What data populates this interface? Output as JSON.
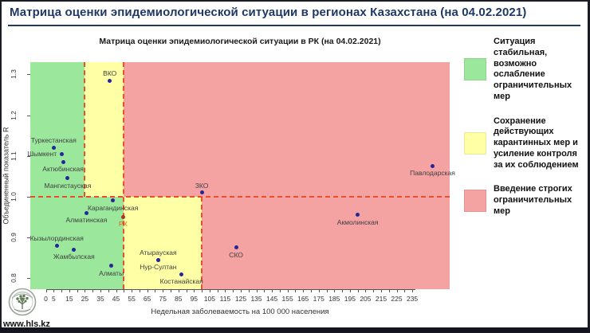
{
  "header": {
    "title": "Матрица оценки эпидемиологической ситуации в регионах Казахстана (на 04.02.2021)"
  },
  "footer": {
    "website": "www.hls.kz",
    "logo_icon": "tree-emblem-icon"
  },
  "colors": {
    "green": "#9be79b",
    "yellow": "#ffffa6",
    "red": "#f4a2a2",
    "dash": "#e8502a",
    "point": "#26269b",
    "rk_point": "#a8391e",
    "rk_label": "#e8601c",
    "title_navy": "#1f3864"
  },
  "legend": {
    "items": [
      {
        "swatch": "green",
        "text": "Ситуация стабильная, возможно ослабление ограничительных мер"
      },
      {
        "swatch": "yellow",
        "text": "Сохранение действующих карантинных мер и усиление контроля за их соблюдением"
      },
      {
        "swatch": "red",
        "text": "Введение строгих ограничительных мер"
      }
    ]
  },
  "chart_data": {
    "type": "scatter",
    "title": "Матрица оценки эпидемиологической ситуации в РК (на 04.02.2021)",
    "xlabel": "Недельная заболеваемость на 100 000 населения",
    "ylabel": "Объединенный показатель R",
    "xlim": [
      -10,
      259
    ],
    "ylim": [
      0.773,
      1.33
    ],
    "x_tick_min": 0,
    "x_tick_max": 235,
    "x_tick_step": 5,
    "x_tick_labels": [
      0,
      5,
      15,
      25,
      35,
      45,
      55,
      65,
      75,
      85,
      95,
      105,
      115,
      125,
      135,
      145,
      155,
      165,
      175,
      185,
      195,
      205,
      215,
      225,
      235
    ],
    "y_ticks": [
      0.8,
      0.9,
      1.0,
      1.1,
      1.2,
      1.3
    ],
    "grid": false,
    "zones": [
      {
        "x0": -10,
        "x1": 25,
        "r0": 1.0,
        "r1": 1.33,
        "color": "green"
      },
      {
        "x0": 25,
        "x1": 50,
        "r0": 1.0,
        "r1": 1.33,
        "color": "yellow"
      },
      {
        "x0": 50,
        "x1": 259,
        "r0": 1.0,
        "r1": 1.33,
        "color": "red"
      },
      {
        "x0": -10,
        "x1": 50,
        "r0": 0.773,
        "r1": 1.0,
        "color": "green"
      },
      {
        "x0": 50,
        "x1": 100,
        "r0": 0.773,
        "r1": 1.0,
        "color": "yellow"
      },
      {
        "x0": 100,
        "x1": 259,
        "r0": 0.773,
        "r1": 1.0,
        "color": "red"
      }
    ],
    "threshold_lines": [
      {
        "type": "h",
        "r": 1.0,
        "x0": -10,
        "x1": 259
      },
      {
        "type": "v",
        "x": 25,
        "r0": 1.0,
        "r1": 1.33
      },
      {
        "type": "v",
        "x": 50,
        "r0": 0.773,
        "r1": 1.33
      },
      {
        "type": "v",
        "x": 100,
        "r0": 0.773,
        "r1": 1.0
      }
    ],
    "points": [
      {
        "name": "Туркестанская",
        "x": 5,
        "r": 1.12,
        "label_pos": "above"
      },
      {
        "name": "Шымкент",
        "x": 10,
        "r": 1.105,
        "label_pos": "left"
      },
      {
        "name": "Актюбинская",
        "x": 11,
        "r": 1.085,
        "label_pos": "below"
      },
      {
        "name": "Мангистауская",
        "x": 14,
        "r": 1.045,
        "label_pos": "below"
      },
      {
        "name": "Кызылординская",
        "x": 7,
        "r": 0.88,
        "label_pos": "above"
      },
      {
        "name": "Жамбылская",
        "x": 18,
        "r": 0.87,
        "label_pos": "below"
      },
      {
        "name": "Алматинская",
        "x": 26,
        "r": 0.96,
        "label_pos": "below"
      },
      {
        "name": "ВКО",
        "x": 41,
        "r": 1.285,
        "label_pos": "above"
      },
      {
        "name": "Карагандинская",
        "x": 43,
        "r": 0.99,
        "label_pos": "below"
      },
      {
        "name": "Алматы",
        "x": 42,
        "r": 0.83,
        "label_pos": "below"
      },
      {
        "name": "РК",
        "x": 49.5,
        "r": 0.95,
        "label_pos": "below",
        "is_rk": true
      },
      {
        "name": "Атырауская",
        "x": 72,
        "r": 0.845,
        "label_pos": "above"
      },
      {
        "name": "Нур-Султан",
        "x": 72,
        "r": 0.845,
        "label_pos": "below"
      },
      {
        "name": "Костанайская",
        "x": 87,
        "r": 0.81,
        "label_pos": "below"
      },
      {
        "name": "ЗКО",
        "x": 100,
        "r": 1.01,
        "label_pos": "above"
      },
      {
        "name": "СКО",
        "x": 122,
        "r": 0.875,
        "label_pos": "below"
      },
      {
        "name": "Акмолинская",
        "x": 200,
        "r": 0.955,
        "label_pos": "below"
      },
      {
        "name": "Павлодарская",
        "x": 248,
        "r": 1.075,
        "label_pos": "below"
      }
    ]
  }
}
